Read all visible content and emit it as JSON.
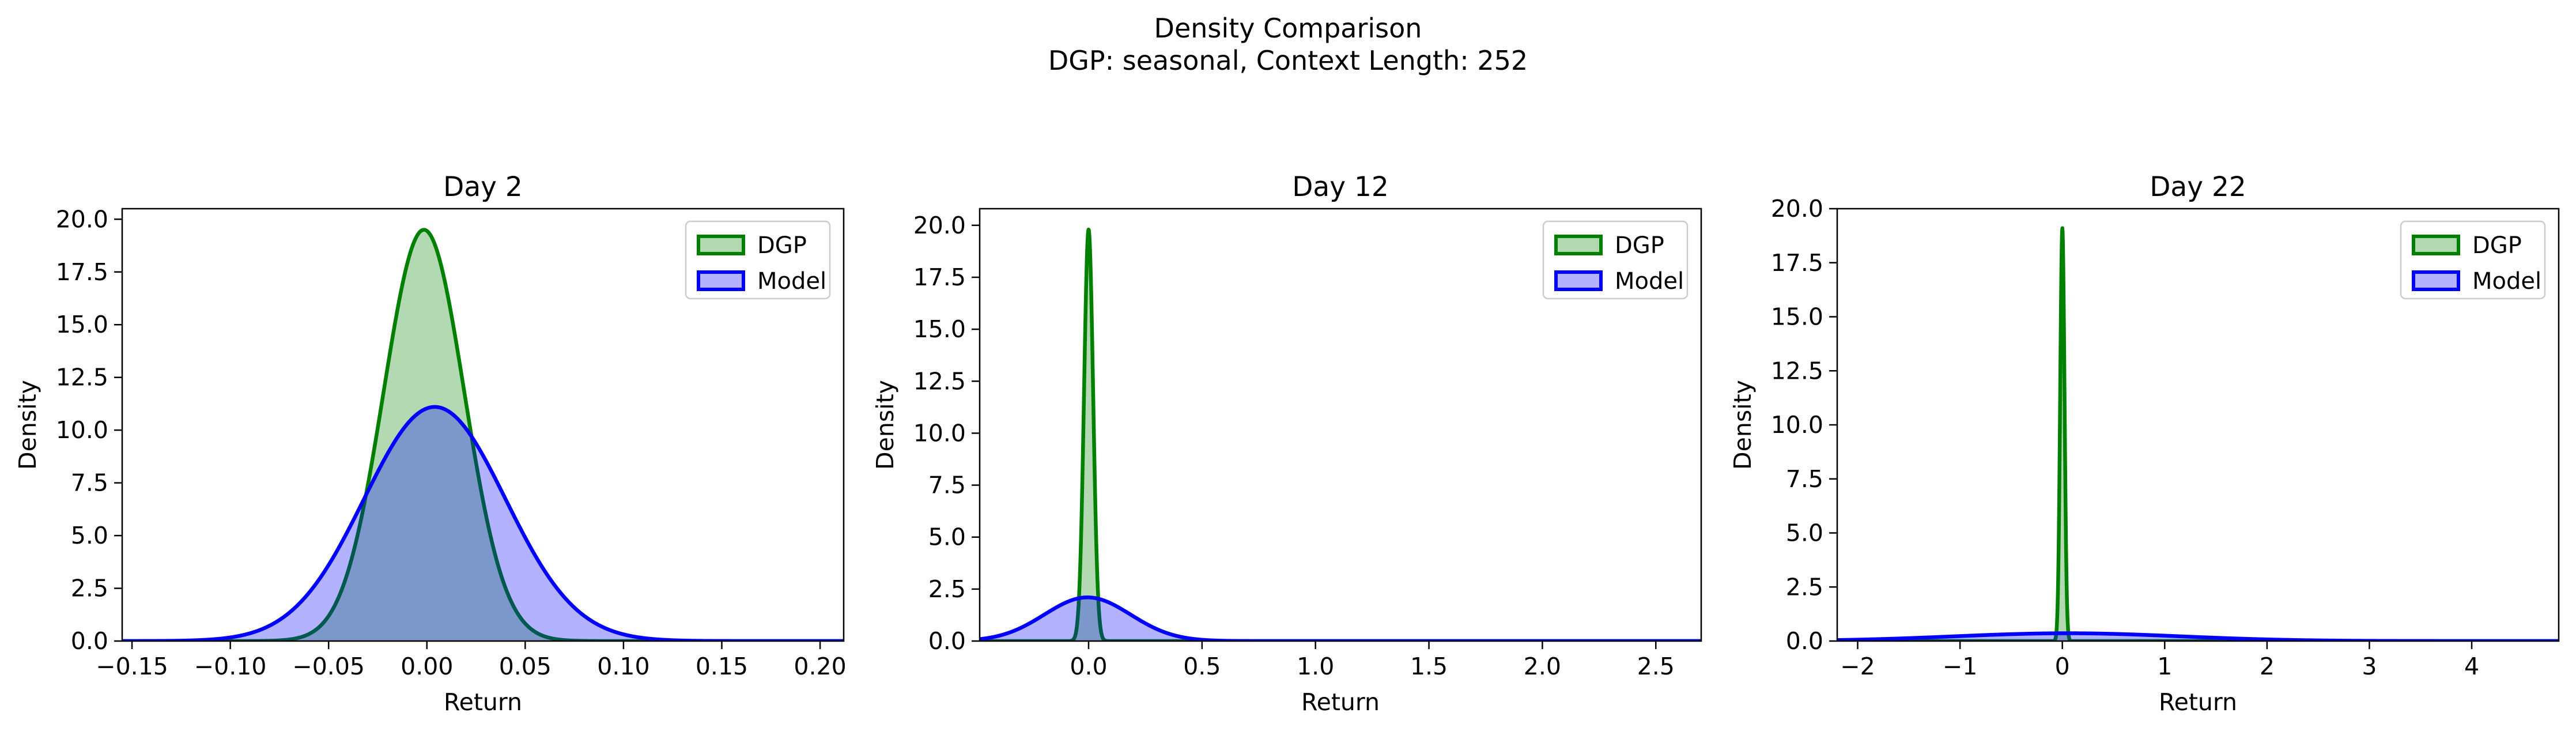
{
  "figure": {
    "title_line1": "Density Comparison",
    "title_line2": "DGP: seasonal, Context Length: 252"
  },
  "colors": {
    "dgp_line": "#008000",
    "dgp_fill": "#008000",
    "model_line": "#0000ff",
    "model_fill": "#0000ff",
    "fill_alpha": 0.3
  },
  "chart_data": [
    {
      "type": "area",
      "title": "Day 2",
      "xlabel": "Return",
      "ylabel": "Density",
      "xlim": [
        -0.155,
        0.212
      ],
      "ylim": [
        0,
        20.5
      ],
      "xticks": [
        -0.15,
        -0.1,
        -0.05,
        0.0,
        0.05,
        0.1,
        0.15,
        0.2
      ],
      "xtick_labels": [
        "−0.15",
        "−0.10",
        "−0.05",
        "0.00",
        "0.05",
        "0.10",
        "0.15",
        "0.20"
      ],
      "yticks": [
        0,
        2.5,
        5.0,
        7.5,
        10.0,
        12.5,
        15.0,
        17.5,
        20.0
      ],
      "ytick_labels": [
        "0.0",
        "2.5",
        "5.0",
        "7.5",
        "10.0",
        "12.5",
        "15.0",
        "17.5",
        "20.0"
      ],
      "legend_position": "upper right",
      "grid": false,
      "series": [
        {
          "name": "DGP",
          "distribution": "gaussian",
          "mean": -0.0015,
          "std": 0.0205,
          "peak": 19.5
        },
        {
          "name": "Model",
          "distribution": "gaussian",
          "mean": 0.004,
          "std": 0.036,
          "peak": 11.1
        }
      ]
    },
    {
      "type": "area",
      "title": "Day 12",
      "xlabel": "Return",
      "ylabel": "Density",
      "xlim": [
        -0.48,
        2.7
      ],
      "ylim": [
        0,
        20.8
      ],
      "xticks": [
        0.0,
        0.5,
        1.0,
        1.5,
        2.0,
        2.5
      ],
      "xtick_labels": [
        "0.0",
        "0.5",
        "1.0",
        "1.5",
        "2.0",
        "2.5"
      ],
      "yticks": [
        0,
        2.5,
        5.0,
        7.5,
        10.0,
        12.5,
        15.0,
        17.5,
        20.0
      ],
      "ytick_labels": [
        "0.0",
        "2.5",
        "5.0",
        "7.5",
        "10.0",
        "12.5",
        "15.0",
        "17.5",
        "20.0"
      ],
      "legend_position": "upper right",
      "grid": false,
      "series": [
        {
          "name": "DGP",
          "distribution": "gaussian",
          "mean": 0.0,
          "std": 0.02,
          "peak": 19.8
        },
        {
          "name": "Model",
          "distribution": "gaussian",
          "mean": -0.005,
          "std": 0.19,
          "peak": 2.1
        }
      ]
    },
    {
      "type": "area",
      "title": "Day 22",
      "xlabel": "Return",
      "ylabel": "Density",
      "xlim": [
        -2.2,
        4.85
      ],
      "ylim": [
        0,
        20.0
      ],
      "xticks": [
        -2,
        -1,
        0,
        1,
        2,
        3,
        4
      ],
      "xtick_labels": [
        "−2",
        "−1",
        "0",
        "1",
        "2",
        "3",
        "4"
      ],
      "yticks": [
        0,
        2.5,
        5.0,
        7.5,
        10.0,
        12.5,
        15.0,
        17.5,
        20.0
      ],
      "ytick_labels": [
        "0.0",
        "2.5",
        "5.0",
        "7.5",
        "10.0",
        "12.5",
        "15.0",
        "17.5",
        "20.0"
      ],
      "legend_position": "upper right",
      "grid": false,
      "series": [
        {
          "name": "DGP",
          "distribution": "gaussian",
          "mean": 0.0,
          "std": 0.021,
          "peak": 19.1
        },
        {
          "name": "Model",
          "distribution": "gaussian",
          "mean": 0.05,
          "std": 1.1,
          "peak": 0.36
        }
      ]
    }
  ]
}
